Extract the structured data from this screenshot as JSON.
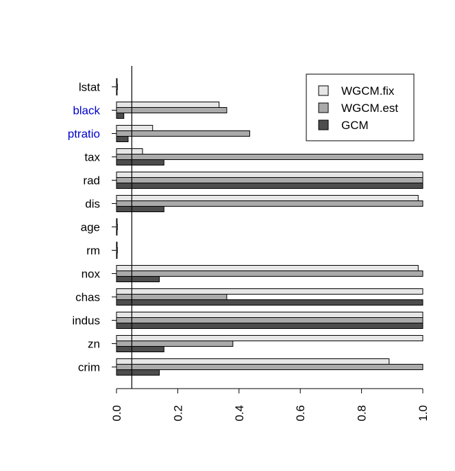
{
  "chart_data": {
    "type": "bar",
    "orientation": "horizontal",
    "title": "",
    "xlabel": "",
    "ylabel": "",
    "xlim": [
      0,
      1
    ],
    "x_ticks": [
      "0.0",
      "0.2",
      "0.4",
      "0.6",
      "0.8",
      "1.0"
    ],
    "tick_label_rotation": "vertical",
    "reference_line": 0.05,
    "legend_position": "top-right",
    "categories": [
      "crim",
      "zn",
      "indus",
      "chas",
      "nox",
      "rm",
      "age",
      "dis",
      "rad",
      "tax",
      "ptratio",
      "black",
      "lstat"
    ],
    "highlighted_categories": [
      "ptratio",
      "black"
    ],
    "highlight_color": "#0000cc",
    "series": [
      {
        "name": "WGCM.fix",
        "color": "#e6e6e6",
        "values": [
          0.89,
          1.0,
          1.0,
          1.0,
          0.985,
          0.002,
          0.002,
          0.985,
          1.0,
          0.085,
          0.118,
          0.335,
          0.002
        ]
      },
      {
        "name": "WGCM.est",
        "color": "#aaaaaa",
        "values": [
          1.0,
          0.38,
          1.0,
          0.36,
          1.0,
          0.003,
          0.003,
          1.0,
          1.0,
          1.0,
          0.435,
          0.36,
          0.003
        ]
      },
      {
        "name": "GCM",
        "color": "#4d4d4d",
        "values": [
          0.14,
          0.155,
          1.0,
          1.0,
          0.14,
          0.002,
          0.002,
          0.155,
          1.0,
          0.155,
          0.038,
          0.024,
          0.002
        ]
      }
    ]
  }
}
